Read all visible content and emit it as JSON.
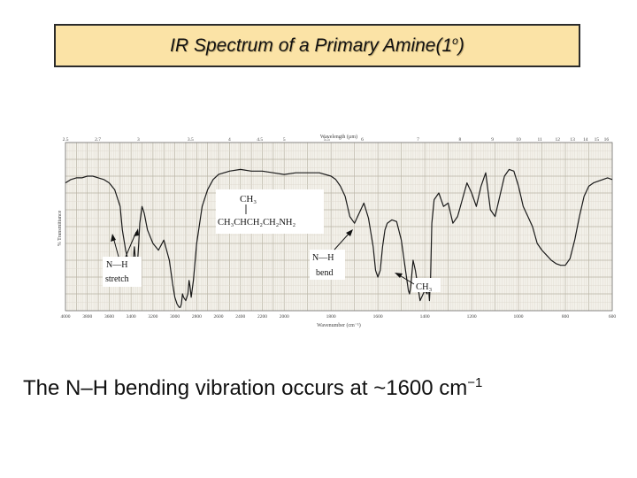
{
  "title": {
    "main": "IR Spectrum of a Primary Amine(1",
    "sup": "o",
    "end": ")"
  },
  "caption": {
    "text": "The N–H bending vibration occurs at ~1600 cm",
    "sup": "−1"
  },
  "chart_data": {
    "type": "line",
    "title": "",
    "xlabel": "Wavenumber (cm⁻¹)",
    "x2label": "Wavelength (µm)",
    "ylabel": "% Transmittance",
    "xlim": [
      4000,
      600
    ],
    "ylim": [
      0,
      100
    ],
    "x_reversed": true,
    "grid": true,
    "wavenumber_ticks": [
      {
        "label": "4000",
        "value": 4000
      },
      {
        "label": "3800",
        "value": 3800
      },
      {
        "label": "3600",
        "value": 3600
      },
      {
        "label": "3400",
        "value": 3400
      },
      {
        "label": "3200",
        "value": 3200
      },
      {
        "label": "3000",
        "value": 3000
      },
      {
        "label": "2800",
        "value": 2800
      },
      {
        "label": "2600",
        "value": 2600
      },
      {
        "label": "2400",
        "value": 2400
      },
      {
        "label": "2200",
        "value": 2200
      },
      {
        "label": "2000",
        "value": 2000
      },
      {
        "label": "1800",
        "value": 1800
      },
      {
        "label": "1600",
        "value": 1600
      },
      {
        "label": "1400",
        "value": 1400
      },
      {
        "label": "1200",
        "value": 1200
      },
      {
        "label": "1000",
        "value": 1000
      },
      {
        "label": "800",
        "value": 800
      },
      {
        "label": "600",
        "value": 600
      }
    ],
    "wavelength_ticks": [
      {
        "label": "2.5",
        "value": 2.5
      },
      {
        "label": "2.7",
        "value": 2.7
      },
      {
        "label": "3",
        "value": 3
      },
      {
        "label": "3.5",
        "value": 3.5
      },
      {
        "label": "4",
        "value": 4
      },
      {
        "label": "4.5",
        "value": 4.5
      },
      {
        "label": "5",
        "value": 5
      },
      {
        "label": "5.5",
        "value": 5.5
      },
      {
        "label": "6",
        "value": 6
      },
      {
        "label": "7",
        "value": 7
      },
      {
        "label": "8",
        "value": 8
      },
      {
        "label": "9",
        "value": 9
      },
      {
        "label": "10",
        "value": 10
      },
      {
        "label": "11",
        "value": 11
      },
      {
        "label": "12",
        "value": 12
      },
      {
        "label": "13",
        "value": 13
      },
      {
        "label": "14",
        "value": 14
      },
      {
        "label": "15",
        "value": 15
      },
      {
        "label": "16",
        "value": 16
      }
    ],
    "series": [
      {
        "x": [
          4000,
          3950,
          3900,
          3850,
          3800,
          3750,
          3700,
          3650,
          3600,
          3550,
          3500,
          3480,
          3450,
          3420,
          3400,
          3380,
          3370,
          3360,
          3350,
          3340,
          3330,
          3320,
          3300,
          3280,
          3250,
          3200,
          3150,
          3100,
          3050,
          3020,
          3000,
          2980,
          2960,
          2950,
          2940,
          2930,
          2920,
          2900,
          2880,
          2870,
          2860,
          2850,
          2830,
          2800,
          2750,
          2700,
          2650,
          2600,
          2500,
          2400,
          2300,
          2200,
          2100,
          2000,
          1950,
          1900,
          1850,
          1800,
          1780,
          1760,
          1740,
          1720,
          1700,
          1680,
          1660,
          1640,
          1620,
          1610,
          1600,
          1590,
          1580,
          1570,
          1560,
          1540,
          1520,
          1500,
          1480,
          1470,
          1465,
          1460,
          1450,
          1440,
          1420,
          1400,
          1390,
          1385,
          1380,
          1375,
          1370,
          1360,
          1340,
          1320,
          1300,
          1280,
          1260,
          1240,
          1220,
          1200,
          1180,
          1160,
          1140,
          1120,
          1100,
          1080,
          1060,
          1040,
          1020,
          1000,
          980,
          960,
          940,
          920,
          900,
          880,
          860,
          840,
          820,
          800,
          780,
          760,
          740,
          720,
          700,
          680,
          660,
          640,
          620,
          600
        ],
        "y": [
          76,
          78,
          79,
          79,
          80,
          80,
          79,
          78,
          76,
          72,
          62,
          48,
          36,
          28,
          26,
          30,
          38,
          30,
          24,
          30,
          40,
          52,
          62,
          58,
          48,
          40,
          36,
          42,
          30,
          16,
          8,
          4,
          2,
          2,
          4,
          10,
          8,
          6,
          10,
          18,
          14,
          8,
          18,
          40,
          62,
          72,
          78,
          81,
          83,
          84,
          83,
          83,
          82,
          81,
          82,
          82,
          82,
          80,
          78,
          74,
          68,
          56,
          52,
          58,
          64,
          55,
          38,
          24,
          20,
          24,
          38,
          48,
          52,
          54,
          53,
          42,
          22,
          12,
          10,
          14,
          30,
          24,
          6,
          12,
          10,
          16,
          6,
          20,
          52,
          66,
          70,
          62,
          64,
          52,
          56,
          66,
          76,
          70,
          62,
          74,
          82,
          60,
          56,
          68,
          80,
          84,
          83,
          74,
          62,
          56,
          50,
          40,
          36,
          33,
          30,
          28,
          27,
          27,
          31,
          42,
          56,
          68,
          74,
          76,
          77,
          78,
          79,
          78
        ]
      }
    ],
    "annotations": [
      {
        "label": "N—H stretch",
        "x": 3370
      },
      {
        "label": "N—H bend",
        "x": 1600
      },
      {
        "label": "CH₃",
        "x": 1380
      }
    ],
    "structure": {
      "line1": "CH₃",
      "line2_prefix": "CH₃CHCH₂CH₂NH₂"
    }
  }
}
